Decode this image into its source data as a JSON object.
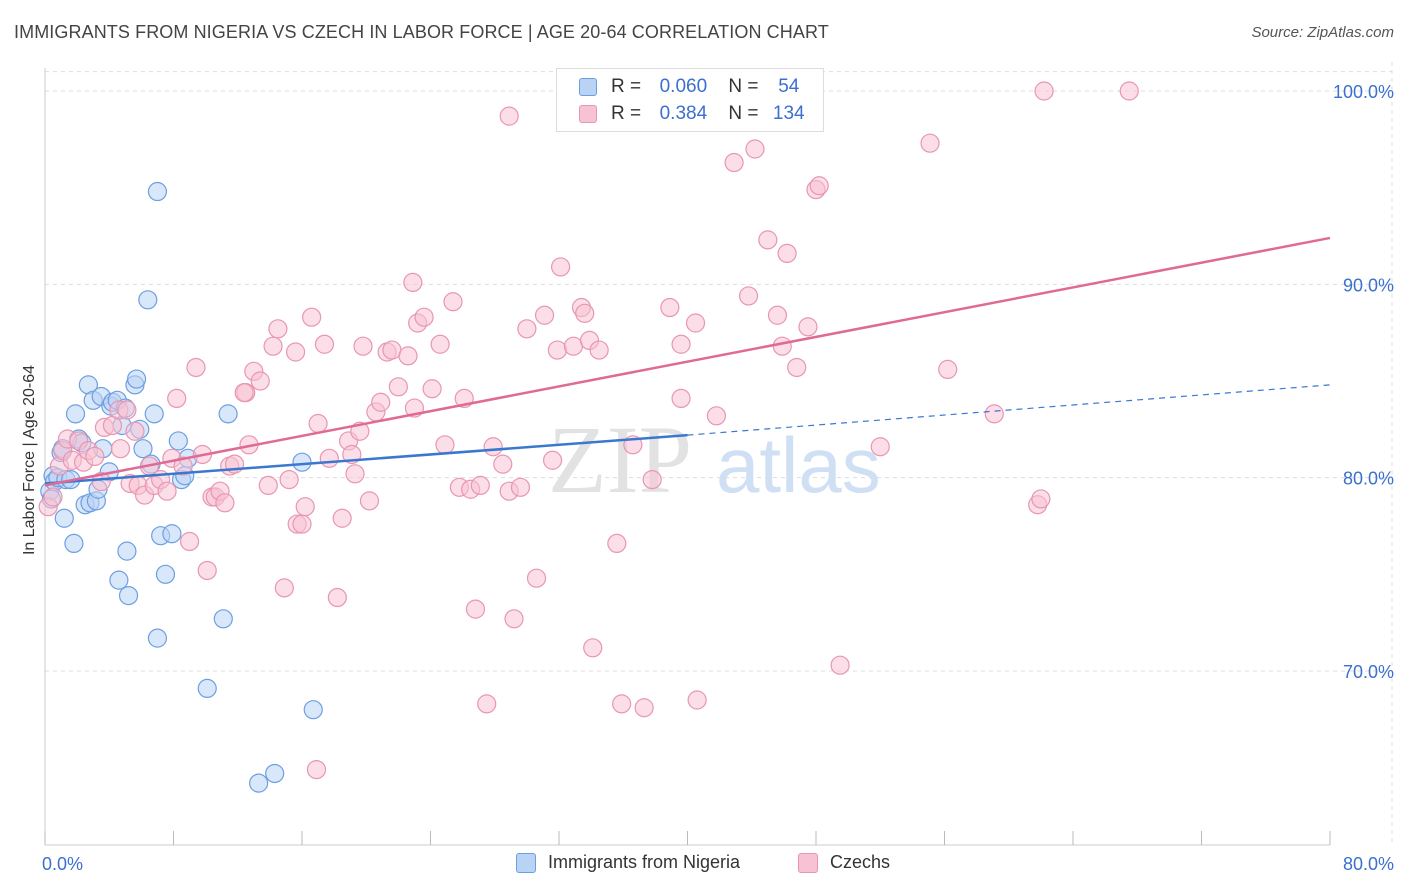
{
  "header": {
    "title": "IMMIGRANTS FROM NIGERIA VS CZECH IN LABOR FORCE | AGE 20-64 CORRELATION CHART",
    "source": "Source: ZipAtlas.com"
  },
  "watermark": {
    "zip": "ZIP",
    "atlas": "atlas"
  },
  "legend_top": [
    {
      "r_label": "R =",
      "r_value": "0.060",
      "n_label": "N =",
      "n_value": "54"
    },
    {
      "r_label": "R =",
      "r_value": "0.384",
      "n_label": "N =",
      "n_value": "134"
    }
  ],
  "colors": {
    "nigeria_fill": "#b9d3f5",
    "nigeria_stroke": "#6d9fe0",
    "nigeria_line": "#3a78d0",
    "czech_fill": "#f7c3d4",
    "czech_stroke": "#e896b1",
    "czech_line": "#e06a95",
    "grid": "#dddddd",
    "tick_text": "#3b6fd0"
  },
  "chart_data": {
    "type": "scatter",
    "title": "IMMIGRANTS FROM NIGERIA VS CZECH IN LABOR FORCE | AGE 20-64 CORRELATION CHART",
    "xlabel": "",
    "ylabel": "In Labor Force | Age 20-64",
    "xlim": [
      0,
      80
    ],
    "ylim": [
      61,
      101.5
    ],
    "x_tick_labels": [
      "0.0%",
      "80.0%"
    ],
    "y_ticks": [
      70,
      80,
      90,
      100
    ],
    "y_tick_labels": [
      "70.0%",
      "80.0%",
      "90.0%",
      "100.0%"
    ],
    "grid": true,
    "legend_position": "bottom",
    "series": [
      {
        "name": "Immigrants from Nigeria",
        "r": 0.06,
        "n": 54,
        "trend": {
          "x": [
            0,
            40
          ],
          "y": [
            79.7,
            82.2
          ],
          "dashed_to": [
            80,
            84.8
          ]
        },
        "points": [
          [
            0.3,
            79.3
          ],
          [
            0.4,
            78.9
          ],
          [
            0.5,
            80.1
          ],
          [
            0.6,
            79.8
          ],
          [
            0.8,
            80.0
          ],
          [
            1.0,
            81.3
          ],
          [
            1.1,
            81.5
          ],
          [
            1.3,
            79.9
          ],
          [
            1.2,
            77.9
          ],
          [
            1.8,
            76.6
          ],
          [
            1.9,
            83.3
          ],
          [
            2.1,
            82.0
          ],
          [
            2.5,
            78.6
          ],
          [
            2.7,
            84.8
          ],
          [
            2.8,
            78.7
          ],
          [
            3.0,
            84.0
          ],
          [
            3.2,
            78.8
          ],
          [
            3.3,
            79.4
          ],
          [
            3.5,
            84.2
          ],
          [
            3.6,
            81.5
          ],
          [
            4.0,
            80.3
          ],
          [
            4.1,
            83.7
          ],
          [
            4.2,
            83.9
          ],
          [
            4.5,
            84.0
          ],
          [
            4.6,
            74.7
          ],
          [
            4.8,
            82.7
          ],
          [
            5.0,
            83.6
          ],
          [
            5.1,
            76.2
          ],
          [
            5.2,
            73.9
          ],
          [
            5.6,
            84.8
          ],
          [
            5.7,
            85.1
          ],
          [
            5.9,
            82.5
          ],
          [
            6.1,
            81.5
          ],
          [
            6.4,
            89.2
          ],
          [
            6.6,
            80.7
          ],
          [
            6.8,
            83.3
          ],
          [
            7.0,
            94.8
          ],
          [
            7.0,
            71.7
          ],
          [
            7.2,
            77.0
          ],
          [
            7.5,
            75.0
          ],
          [
            7.9,
            77.1
          ],
          [
            8.3,
            81.9
          ],
          [
            8.5,
            79.9
          ],
          [
            8.7,
            80.1
          ],
          [
            8.9,
            81.0
          ],
          [
            10.1,
            69.1
          ],
          [
            11.1,
            72.7
          ],
          [
            11.4,
            83.3
          ],
          [
            13.3,
            64.2
          ],
          [
            14.3,
            64.7
          ],
          [
            16.0,
            80.8
          ],
          [
            16.7,
            68.0
          ],
          [
            1.6,
            79.9
          ],
          [
            2.3,
            81.8
          ]
        ]
      },
      {
        "name": "Czechs",
        "r": 0.384,
        "n": 134,
        "trend": {
          "x": [
            0,
            80
          ],
          "y": [
            79.6,
            92.4
          ]
        },
        "points": [
          [
            0.2,
            78.5
          ],
          [
            0.5,
            79.0
          ],
          [
            0.9,
            80.6
          ],
          [
            1.1,
            81.4
          ],
          [
            1.4,
            82.0
          ],
          [
            1.7,
            80.9
          ],
          [
            2.1,
            81.9
          ],
          [
            2.4,
            80.8
          ],
          [
            2.7,
            81.4
          ],
          [
            3.1,
            81.1
          ],
          [
            3.5,
            79.8
          ],
          [
            3.7,
            82.6
          ],
          [
            4.2,
            82.7
          ],
          [
            4.6,
            83.5
          ],
          [
            4.7,
            81.5
          ],
          [
            5.1,
            83.5
          ],
          [
            5.3,
            79.7
          ],
          [
            5.6,
            82.4
          ],
          [
            5.8,
            79.6
          ],
          [
            6.2,
            79.1
          ],
          [
            6.5,
            80.6
          ],
          [
            6.8,
            79.6
          ],
          [
            7.2,
            79.9
          ],
          [
            7.6,
            79.3
          ],
          [
            7.9,
            81.0
          ],
          [
            8.2,
            84.1
          ],
          [
            8.6,
            80.6
          ],
          [
            9.0,
            76.7
          ],
          [
            9.4,
            85.7
          ],
          [
            9.8,
            81.2
          ],
          [
            10.1,
            75.2
          ],
          [
            10.4,
            79.0
          ],
          [
            10.6,
            79.0
          ],
          [
            10.9,
            79.3
          ],
          [
            11.2,
            78.7
          ],
          [
            11.5,
            80.6
          ],
          [
            11.8,
            80.7
          ],
          [
            12.5,
            84.4
          ],
          [
            12.7,
            81.7
          ],
          [
            13.0,
            85.5
          ],
          [
            13.4,
            85.0
          ],
          [
            13.9,
            79.6
          ],
          [
            14.2,
            86.8
          ],
          [
            14.5,
            87.7
          ],
          [
            14.9,
            74.3
          ],
          [
            15.2,
            79.9
          ],
          [
            15.6,
            86.5
          ],
          [
            15.7,
            77.6
          ],
          [
            16.0,
            77.6
          ],
          [
            16.2,
            78.5
          ],
          [
            16.6,
            88.3
          ],
          [
            17.0,
            82.8
          ],
          [
            17.4,
            86.9
          ],
          [
            17.7,
            81.0
          ],
          [
            18.2,
            73.8
          ],
          [
            18.5,
            77.9
          ],
          [
            18.9,
            81.9
          ],
          [
            19.3,
            80.2
          ],
          [
            19.6,
            82.4
          ],
          [
            19.8,
            86.8
          ],
          [
            20.2,
            78.8
          ],
          [
            20.6,
            83.4
          ],
          [
            20.9,
            83.9
          ],
          [
            21.3,
            86.5
          ],
          [
            21.6,
            86.6
          ],
          [
            22.0,
            84.7
          ],
          [
            22.6,
            86.3
          ],
          [
            22.9,
            90.1
          ],
          [
            23.2,
            88.0
          ],
          [
            23.6,
            88.3
          ],
          [
            24.1,
            84.6
          ],
          [
            24.6,
            86.9
          ],
          [
            24.9,
            81.7
          ],
          [
            25.4,
            89.1
          ],
          [
            25.8,
            79.5
          ],
          [
            26.1,
            84.1
          ],
          [
            26.5,
            79.4
          ],
          [
            26.8,
            73.2
          ],
          [
            27.1,
            79.6
          ],
          [
            27.5,
            68.3
          ],
          [
            27.9,
            81.6
          ],
          [
            28.5,
            80.7
          ],
          [
            28.9,
            79.3
          ],
          [
            28.9,
            98.7
          ],
          [
            29.2,
            72.7
          ],
          [
            29.6,
            79.5
          ],
          [
            30.0,
            87.7
          ],
          [
            30.6,
            74.8
          ],
          [
            31.1,
            88.4
          ],
          [
            31.6,
            80.9
          ],
          [
            31.9,
            86.6
          ],
          [
            32.1,
            90.9
          ],
          [
            32.9,
            86.8
          ],
          [
            33.4,
            88.8
          ],
          [
            33.6,
            88.5
          ],
          [
            33.9,
            87.1
          ],
          [
            34.1,
            71.2
          ],
          [
            34.5,
            86.6
          ],
          [
            35.6,
            76.6
          ],
          [
            35.9,
            68.3
          ],
          [
            36.1,
            100.0
          ],
          [
            36.6,
            81.7
          ],
          [
            37.3,
            68.1
          ],
          [
            38.9,
            88.8
          ],
          [
            39.6,
            86.9
          ],
          [
            39.6,
            84.1
          ],
          [
            40.5,
            88.0
          ],
          [
            40.6,
            68.5
          ],
          [
            41.8,
            83.2
          ],
          [
            42.9,
            96.3
          ],
          [
            43.8,
            89.4
          ],
          [
            44.2,
            97.0
          ],
          [
            45.0,
            92.3
          ],
          [
            45.6,
            88.4
          ],
          [
            46.2,
            91.6
          ],
          [
            46.8,
            85.7
          ],
          [
            47.5,
            87.8
          ],
          [
            48.0,
            94.9
          ],
          [
            48.2,
            95.1
          ],
          [
            49.5,
            70.3
          ],
          [
            52.0,
            81.6
          ],
          [
            55.1,
            97.3
          ],
          [
            56.2,
            85.6
          ],
          [
            59.1,
            83.3
          ],
          [
            61.8,
            78.6
          ],
          [
            62.0,
            78.9
          ],
          [
            62.2,
            100.0
          ],
          [
            67.5,
            100.0
          ],
          [
            12.4,
            84.4
          ],
          [
            19.1,
            81.2
          ],
          [
            23.0,
            83.6
          ],
          [
            37.8,
            79.9
          ],
          [
            45.9,
            86.8
          ],
          [
            16.9,
            64.9
          ]
        ]
      }
    ]
  }
}
